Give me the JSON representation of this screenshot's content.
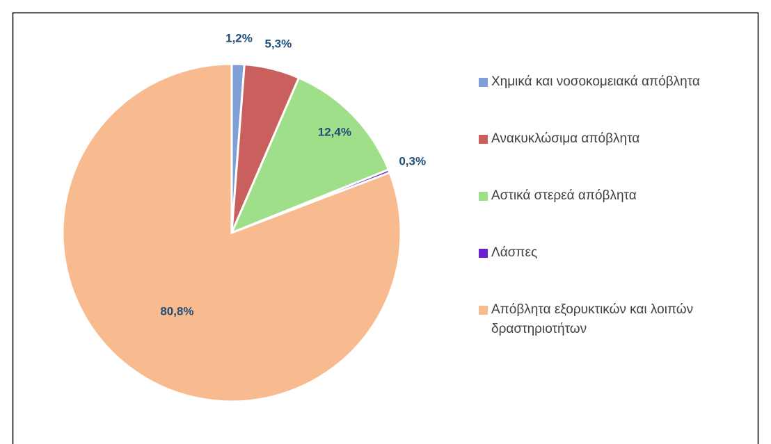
{
  "chart_data": {
    "type": "pie",
    "categories": [
      "Χημικά και νοσοκομειακά απόβλητα",
      "Ανακυκλώσιμα απόβλητα",
      "Αστικά στερεά απόβλητα",
      "Λάσπες",
      "Απόβλητα εξορυκτικών και λοιπών δραστηριοτήτων"
    ],
    "values": [
      1.2,
      5.3,
      12.4,
      0.3,
      80.8
    ],
    "value_labels": [
      "1,2%",
      "5,3%",
      "12,4%",
      "0,3%",
      "80,8%"
    ],
    "colors": [
      "#7f9fd6",
      "#c9605d",
      "#9fdf8a",
      "#6a1fd0",
      "#f8bb90"
    ],
    "legend": "right"
  }
}
